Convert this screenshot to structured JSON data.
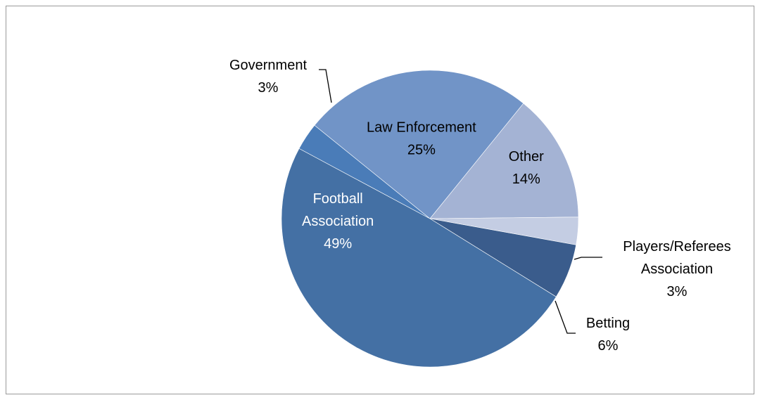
{
  "chart_data": {
    "type": "pie",
    "title": "",
    "start_angle_deg": -51,
    "direction": "clockwise",
    "slices": [
      {
        "label_lines": [
          "Other"
        ],
        "percent_text": "14%",
        "value": 14,
        "color": "#a4b3d4",
        "label_color": "#000000"
      },
      {
        "label_lines": [
          "Players/Referees",
          "Association"
        ],
        "percent_text": "3%",
        "value": 3,
        "color": "#c4cde3",
        "label_color": "#000000"
      },
      {
        "label_lines": [
          "Betting"
        ],
        "percent_text": "6%",
        "value": 6,
        "color": "#3a5c8c",
        "label_color": "#000000"
      },
      {
        "label_lines": [
          "Football",
          "Association"
        ],
        "percent_text": "49%",
        "value": 49,
        "color": "#4470a4",
        "label_color": "#ffffff"
      },
      {
        "label_lines": [
          "Government"
        ],
        "percent_text": "3%",
        "value": 3,
        "color": "#4a7cb8",
        "label_color": "#000000"
      },
      {
        "label_lines": [
          "Law Enforcement"
        ],
        "percent_text": "25%",
        "value": 25,
        "color": "#7194c7",
        "label_color": "#000000"
      }
    ]
  }
}
